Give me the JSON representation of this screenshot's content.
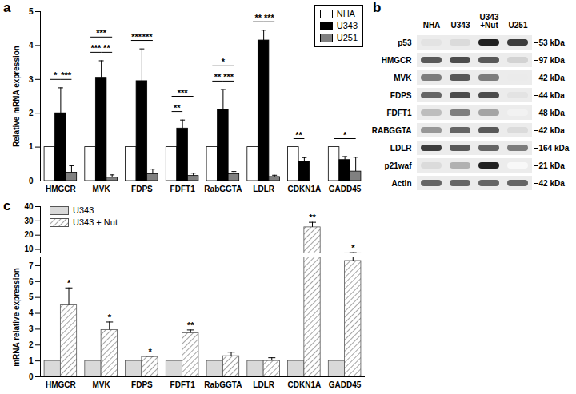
{
  "chart_data": [
    {
      "type": "bar",
      "title": "a",
      "y_label": "Relative mRNA expression",
      "categories": [
        "HMGCR",
        "MVK",
        "FDPS",
        "FDFT1",
        "RabGGTA",
        "LDLR",
        "CDKN1A",
        "GADD45"
      ],
      "series": [
        {
          "name": "NHA",
          "color": "#ffffff",
          "values": [
            1,
            1,
            1,
            1,
            1,
            1,
            1,
            1
          ]
        },
        {
          "name": "U343",
          "color": "#000000",
          "values": [
            2.0,
            3.05,
            2.95,
            1.55,
            2.1,
            4.15,
            0.57,
            0.62
          ],
          "errors": [
            0.75,
            0.5,
            0.95,
            0.25,
            0.6,
            0.3,
            0.12,
            0.1
          ]
        },
        {
          "name": "U251",
          "color": "#808080",
          "values": [
            0.25,
            0.1,
            0.2,
            0.15,
            0.2,
            0.12,
            null,
            0.28
          ],
          "errors": [
            0.2,
            0.08,
            0.15,
            0.08,
            0.08,
            0.05,
            null,
            0.42
          ]
        }
      ],
      "ylim": [
        0,
        5
      ],
      "yticks": [
        0,
        1,
        2,
        3,
        4,
        5
      ],
      "legend": "top-right",
      "annotations": [
        {
          "category": "HMGCR",
          "from": "NHA",
          "to": "U343",
          "text": "*"
        },
        {
          "category": "HMGCR",
          "from": "U343",
          "to": "U251",
          "text": "***"
        },
        {
          "category": "MVK",
          "from": "NHA",
          "to": "U343",
          "text": "***"
        },
        {
          "category": "MVK",
          "from": "U343",
          "to": "U251",
          "text": "**"
        },
        {
          "category": "MVK",
          "from": "NHA",
          "to": "U251",
          "text": "***"
        },
        {
          "category": "FDPS",
          "from": "NHA",
          "to": "U343",
          "text": "***"
        },
        {
          "category": "FDPS",
          "from": "U343",
          "to": "U251",
          "text": "***"
        },
        {
          "category": "FDFT1",
          "from": "NHA",
          "to": "U343",
          "text": "**"
        },
        {
          "category": "FDFT1",
          "from": "NHA",
          "to": "U251",
          "text": "***"
        },
        {
          "category": "RabGGTA",
          "from": "NHA",
          "to": "U343",
          "text": "**"
        },
        {
          "category": "RabGGTA",
          "from": "U343",
          "to": "U251",
          "text": "***"
        },
        {
          "category": "RabGGTA",
          "from": "NHA",
          "to": "U251",
          "text": "*"
        },
        {
          "category": "LDLR",
          "from": "NHA",
          "to": "U343",
          "text": "**"
        },
        {
          "category": "LDLR",
          "from": "U343",
          "to": "U251",
          "text": "***"
        },
        {
          "category": "CDKN1A",
          "from": "NHA",
          "to": "U343",
          "text": "**"
        },
        {
          "category": "GADD45",
          "from": "NHA",
          "to": "U251",
          "text": "*"
        }
      ]
    },
    {
      "type": "blot",
      "title": "b",
      "lanes": [
        "NHA",
        "U343",
        "U343\n+Nut",
        "U251"
      ],
      "rows": [
        "p53",
        "HMGCR",
        "MVK",
        "FDPS",
        "FDFT1",
        "RABGGTA",
        "LDLR",
        "p21waf",
        "Actin"
      ],
      "sizes": [
        "53 kDa",
        "97 kDa",
        "42 kDa",
        "44 kDa",
        "48 kDa",
        "42 kDa",
        "164 kDa",
        "21 kDa",
        "42 kDa"
      ],
      "intensity": [
        [
          0.15,
          0.2,
          0.95,
          0.85
        ],
        [
          0.75,
          0.8,
          0.75,
          0.25
        ],
        [
          0.6,
          0.75,
          0.6,
          0.1
        ],
        [
          0.7,
          0.8,
          0.8,
          0.15
        ],
        [
          0.35,
          0.6,
          0.45,
          0.05
        ],
        [
          0.5,
          0.7,
          0.75,
          0.2
        ],
        [
          0.85,
          0.75,
          0.7,
          0.6
        ],
        [
          0.2,
          0.4,
          0.95,
          0.0
        ],
        [
          0.7,
          0.7,
          0.7,
          0.7
        ]
      ]
    },
    {
      "type": "bar",
      "title": "c",
      "y_label": "mRNA relative expression",
      "categories": [
        "HMGCR",
        "MVK",
        "FDPS",
        "FDFT1",
        "RabGGTA",
        "LDLR",
        "CDKN1A",
        "GADD45"
      ],
      "series": [
        {
          "name": "U343",
          "color": "#d9d9d9",
          "values": [
            1,
            1,
            1,
            1,
            1,
            1,
            1,
            1
          ]
        },
        {
          "name": "U343 + Nut",
          "color": "#8c8c8c",
          "marker": "hatch",
          "values": [
            4.5,
            2.95,
            1.25,
            2.75,
            1.3,
            1.0,
            25.5,
            7.3
          ],
          "errors": [
            1.1,
            0.5,
            0.05,
            0.2,
            0.25,
            0.2,
            3.5,
            0.4
          ]
        }
      ],
      "ylim": [
        0,
        40
      ],
      "yticks": [
        0,
        1,
        2,
        3,
        4,
        5,
        6,
        7,
        10,
        20,
        30,
        40
      ],
      "y_segments": [
        [
          7.5,
          40
        ],
        [
          0,
          7.5
        ]
      ],
      "legend": "top-left",
      "annotations": [
        {
          "category": "HMGCR",
          "series": "U343 + Nut",
          "text": "*"
        },
        {
          "category": "MVK",
          "series": "U343 + Nut",
          "text": "*"
        },
        {
          "category": "FDPS",
          "series": "U343 + Nut",
          "text": "*"
        },
        {
          "category": "FDFT1",
          "series": "U343 + Nut",
          "text": "**"
        },
        {
          "category": "CDKN1A",
          "series": "U343 + Nut",
          "text": "**"
        },
        {
          "category": "GADD45",
          "series": "U343 + Nut",
          "text": "*"
        }
      ]
    }
  ]
}
